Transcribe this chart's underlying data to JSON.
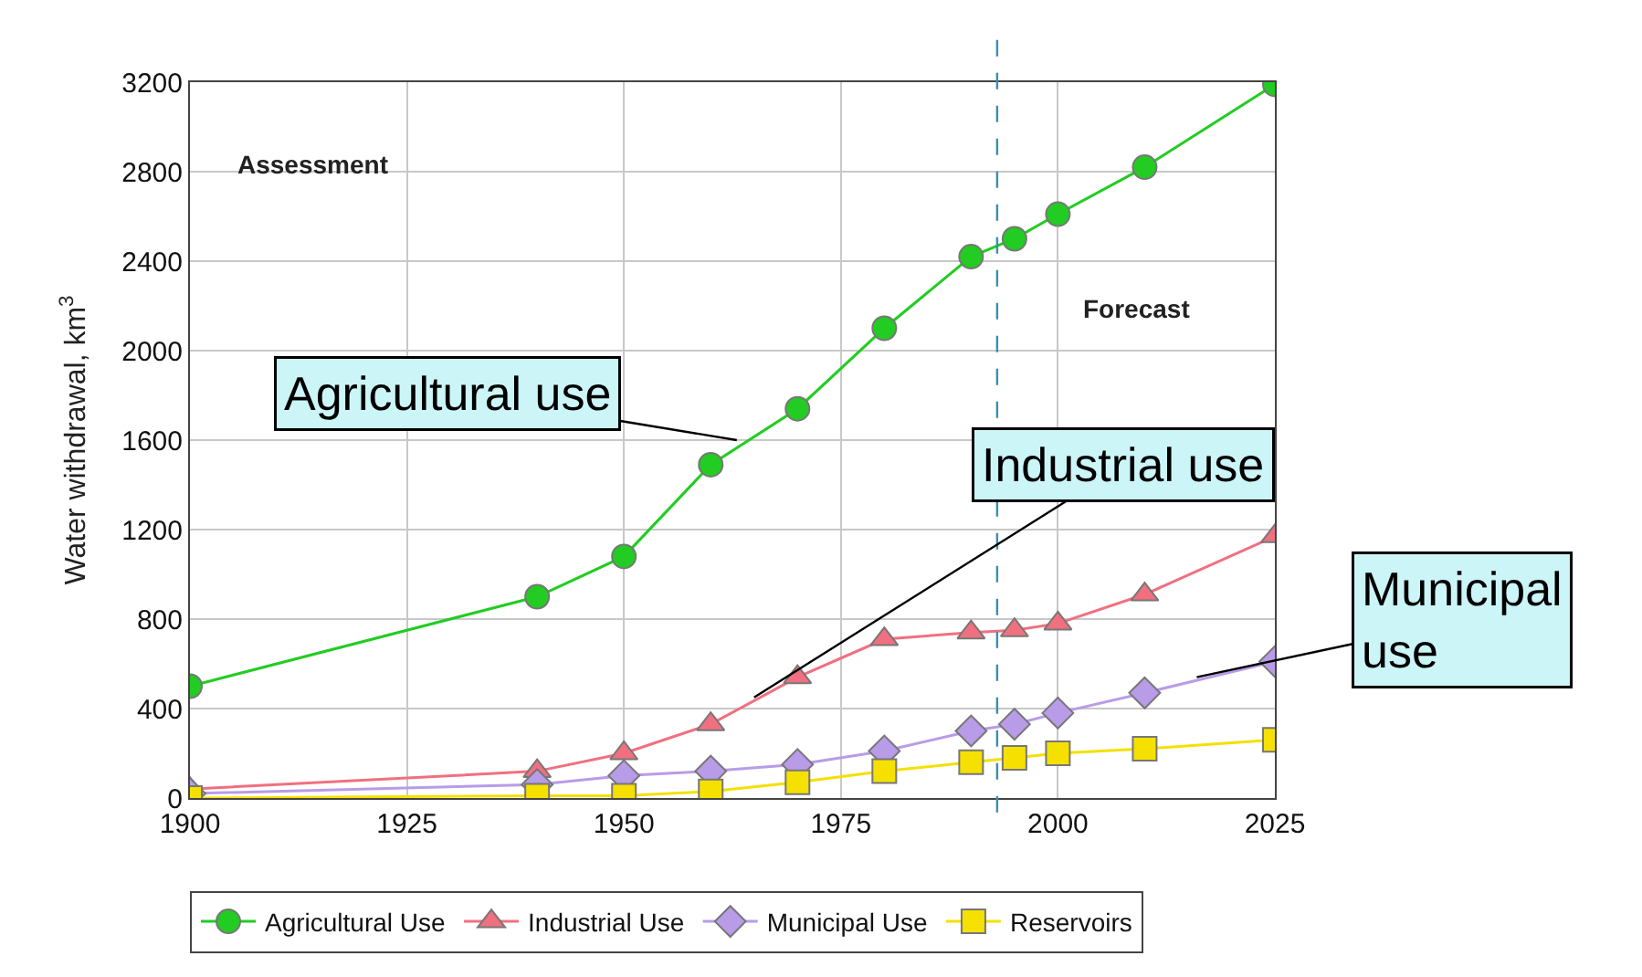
{
  "chart_data": {
    "type": "line",
    "ylabel": "Water withdrawal, km$^{3}$",
    "x": [
      1900,
      1940,
      1950,
      1960,
      1970,
      1980,
      1990,
      1995,
      2000,
      2010,
      2025
    ],
    "xlim": [
      1900,
      2025
    ],
    "xticks": [
      1900,
      1925,
      1950,
      1975,
      2000,
      2025
    ],
    "ylim": [
      0,
      3200
    ],
    "yticks": [
      0,
      400,
      800,
      1200,
      1600,
      2000,
      2400,
      2800,
      3200
    ],
    "grid": true,
    "legend": "bottom",
    "series": [
      {
        "name": "Agricultural Use",
        "color": "#22cc22",
        "marker": "circle",
        "values": [
          500,
          900,
          1080,
          1490,
          1740,
          2100,
          2420,
          2500,
          2610,
          2820,
          3190
        ]
      },
      {
        "name": "Industrial Use",
        "color": "#f07080",
        "marker": "triangle",
        "values": [
          40,
          120,
          200,
          330,
          540,
          710,
          740,
          750,
          780,
          910,
          1170
        ]
      },
      {
        "name": "Municipal Use",
        "color": "#b89ce8",
        "marker": "diamond",
        "values": [
          20,
          60,
          100,
          120,
          150,
          210,
          300,
          330,
          380,
          470,
          610
        ]
      },
      {
        "name": "Reservoirs",
        "color": "#f5e000",
        "marker": "square",
        "values": [
          0,
          10,
          10,
          30,
          70,
          120,
          160,
          180,
          200,
          220,
          260
        ]
      }
    ],
    "ref_lines": [
      {
        "axis": "x",
        "value": 1993,
        "color": "#3a8fb0",
        "line_style": "dashed"
      }
    ],
    "annotations": [
      {
        "text": "Assessment"
      },
      {
        "text": "Forecast"
      },
      {
        "text": "Agricultural use",
        "x": 1963,
        "y": 1600
      },
      {
        "text": "Industrial use",
        "x": 1965,
        "y": 450
      },
      {
        "text": "Municipal\nuse",
        "x": 2016,
        "y": 540
      }
    ]
  }
}
